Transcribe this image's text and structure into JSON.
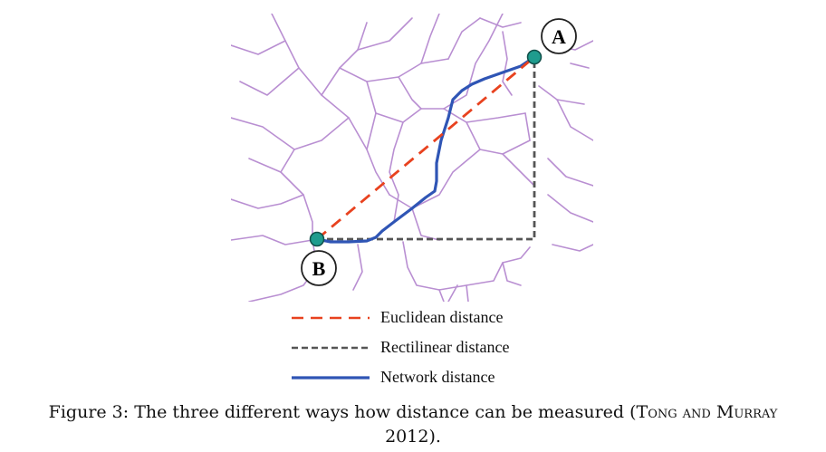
{
  "colors": {
    "road": "#b98fd2",
    "euclidean": "#e8421f",
    "rectilinear": "#555555",
    "network": "#2f55b5",
    "node_fill": "#1f9c8e"
  },
  "nodes": {
    "a": {
      "label": "A"
    },
    "b": {
      "label": "B"
    }
  },
  "legend": {
    "euclidean": "Euclidean distance",
    "rectilinear": "Rectilinear distance",
    "network": "Network distance"
  },
  "caption": {
    "prefix": "Figure 3: The three different ways how distance can be measured (",
    "citation": "Tong and Murray",
    "year_suffix": "2012)."
  }
}
